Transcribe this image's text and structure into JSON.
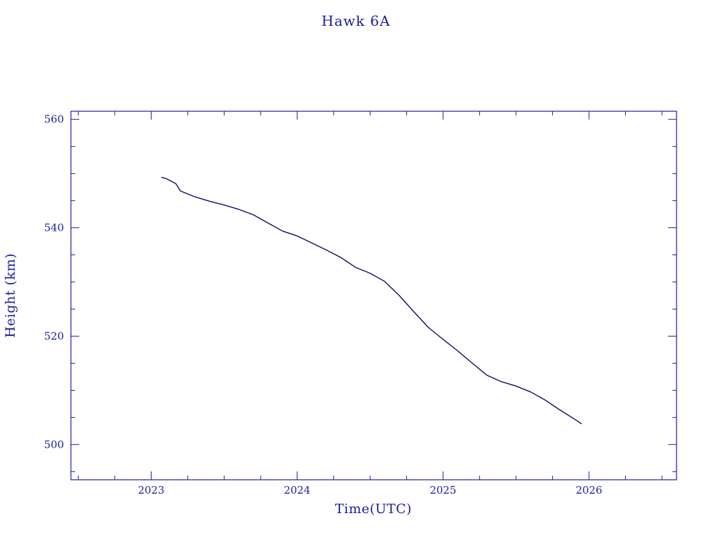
{
  "chart_data": {
    "type": "line",
    "title": "Hawk 6A",
    "xlabel": "Time(UTC)",
    "ylabel": "Height (km)",
    "xlim": [
      2022.45,
      2026.6
    ],
    "ylim": [
      493.5,
      561.5
    ],
    "x_ticks_major": [
      2023,
      2024,
      2025,
      2026
    ],
    "x_tick_labels": [
      "2023",
      "2024",
      "2025",
      "2026"
    ],
    "x_ticks_minor": [
      2022.5,
      2022.75,
      2023.25,
      2023.5,
      2023.75,
      2024.25,
      2024.5,
      2024.75,
      2025.25,
      2025.5,
      2025.75,
      2026.25,
      2026.5
    ],
    "y_ticks_major": [
      500,
      520,
      540,
      560
    ],
    "y_tick_labels": [
      "500",
      "520",
      "540",
      "560"
    ],
    "y_ticks_minor": [
      495,
      505,
      510,
      515,
      525,
      530,
      535,
      545,
      550,
      555
    ],
    "grid": false,
    "legend": "none",
    "series": [
      {
        "color": "#0a0a6e",
        "x": [
          2023.07,
          2023.1,
          2023.13,
          2023.17,
          2023.2,
          2023.3,
          2023.4,
          2023.5,
          2023.6,
          2023.7,
          2023.8,
          2023.9,
          2024.0,
          2024.1,
          2024.2,
          2024.3,
          2024.4,
          2024.5,
          2024.6,
          2024.7,
          2024.8,
          2024.9,
          2025.0,
          2025.1,
          2025.2,
          2025.3,
          2025.4,
          2025.5,
          2025.6,
          2025.7,
          2025.8,
          2025.9,
          2025.95
        ],
        "y": [
          549.3,
          549.1,
          548.7,
          548.1,
          546.8,
          545.7,
          544.9,
          544.2,
          543.4,
          542.4,
          540.9,
          539.4,
          538.5,
          537.2,
          535.9,
          534.5,
          532.7,
          531.6,
          530.1,
          527.5,
          524.5,
          521.6,
          519.4,
          517.3,
          515.0,
          512.8,
          511.6,
          510.8,
          509.7,
          508.2,
          506.4,
          504.7,
          503.8
        ]
      }
    ]
  }
}
